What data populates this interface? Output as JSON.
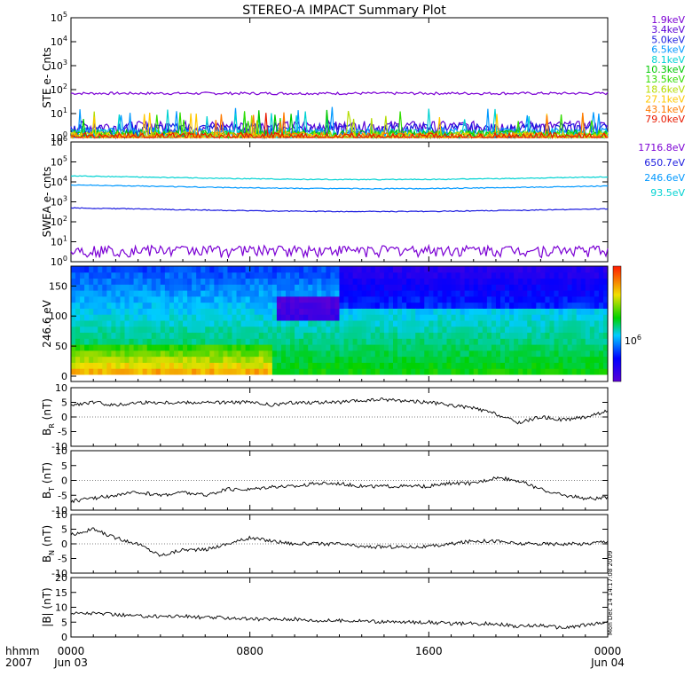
{
  "title": "STEREO-A IMPACT Summary Plot",
  "bottom_labels": {
    "hhmm": "hhmm",
    "year": "2007",
    "x_ticks": [
      "0000",
      "0800",
      "1600",
      "0000"
    ],
    "x_dates": [
      "Jun 03",
      "",
      "",
      "Jun 04"
    ]
  },
  "side_stamp": "Mon Dec 14 14:17:08 2009",
  "chart_data": [
    {
      "id": "ste",
      "type": "line",
      "ylabel": "STE e- Cnts",
      "y_scale": "log",
      "ylim": [
        1,
        100000
      ],
      "y_ticks": [
        "10^0",
        "10^1",
        "10^2",
        "10^3",
        "10^4",
        "10^5"
      ],
      "series": [
        {
          "name": "1.9keV",
          "color": "#7b00d4",
          "level": 70
        },
        {
          "name": "3.4keV",
          "color": "#5a00d6",
          "level": 3
        },
        {
          "name": "5.0keV",
          "color": "#1a1adf",
          "level": 2.4
        },
        {
          "name": "6.5keV",
          "color": "#0098ff",
          "level": 1.6
        },
        {
          "name": "8.1keV",
          "color": "#00d2d2",
          "level": 1.4
        },
        {
          "name": "10.3keV",
          "color": "#00c800",
          "level": 1.3
        },
        {
          "name": "13.5keV",
          "color": "#32dc00",
          "level": 1.2
        },
        {
          "name": "18.6keV",
          "color": "#b4dc00",
          "level": 1.1
        },
        {
          "name": "27.1keV",
          "color": "#ffc800",
          "level": 1.05
        },
        {
          "name": "43.1keV",
          "color": "#ff7a00",
          "level": 1.02
        },
        {
          "name": "79.0keV",
          "color": "#e81a00",
          "level": 1.0
        }
      ]
    },
    {
      "id": "swea",
      "type": "line",
      "ylabel": "SWEA e- cnts",
      "y_scale": "log",
      "ylim": [
        1,
        1000000
      ],
      "y_ticks": [
        "10^0",
        "10^1",
        "10^2",
        "10^3",
        "10^4",
        "10^5",
        "10^6"
      ],
      "series": [
        {
          "name": "1716.8eV",
          "color": "#7b00d4",
          "level": 4
        },
        {
          "name": "650.7eV",
          "color": "#1a1adf",
          "level": 500
        },
        {
          "name": "246.6eV",
          "color": "#0098ff",
          "level": 7000
        },
        {
          "name": "93.5eV",
          "color": "#00d2d2",
          "level": 20000
        }
      ]
    },
    {
      "id": "pad",
      "type": "heatmap",
      "ylabel": "246.6 eV",
      "ylim": [
        0,
        180
      ],
      "y_ticks": [
        "0",
        "50",
        "100",
        "150"
      ],
      "colorbar_label": "10^6"
    },
    {
      "id": "br",
      "type": "line",
      "ylabel": "B_R (nT)",
      "ylim": [
        -10,
        10
      ],
      "y_ticks": [
        "-10",
        "-5",
        "0",
        "5",
        "10"
      ],
      "x": [
        0,
        1,
        2,
        3,
        4,
        5,
        6,
        7,
        8,
        9,
        10,
        11,
        12,
        13,
        14,
        15,
        16,
        17,
        18,
        19,
        20,
        21,
        22,
        23,
        24
      ],
      "values": [
        4,
        5,
        4,
        5,
        5,
        5,
        5,
        5,
        5,
        4,
        5,
        5,
        5,
        5.5,
        6,
        5.5,
        5,
        4,
        3,
        1,
        -2,
        0,
        -1,
        0,
        2
      ]
    },
    {
      "id": "bt",
      "type": "line",
      "ylabel": "B_T (nT)",
      "ylim": [
        -10,
        10
      ],
      "y_ticks": [
        "-10",
        "-5",
        "0",
        "5",
        "10"
      ],
      "x": [
        0,
        1,
        2,
        3,
        4,
        5,
        6,
        7,
        8,
        9,
        10,
        11,
        12,
        13,
        14,
        15,
        16,
        17,
        18,
        19,
        20,
        21,
        22,
        23,
        24
      ],
      "values": [
        -7,
        -6,
        -5,
        -4,
        -5,
        -4,
        -5,
        -3,
        -3,
        -2,
        -2,
        -1,
        -1,
        -2,
        -2,
        -2,
        -2,
        -1,
        -1,
        1,
        0,
        -3,
        -5,
        -6,
        -6
      ]
    },
    {
      "id": "bn",
      "type": "line",
      "ylabel": "B_N (nT)",
      "ylim": [
        -10,
        10
      ],
      "y_ticks": [
        "-10",
        "-5",
        "0",
        "5",
        "10"
      ],
      "x": [
        0,
        1,
        2,
        3,
        4,
        5,
        6,
        7,
        8,
        9,
        10,
        11,
        12,
        13,
        14,
        15,
        16,
        17,
        18,
        19,
        20,
        21,
        22,
        23,
        24
      ],
      "values": [
        3,
        5,
        2,
        0,
        -4,
        -2,
        -2,
        0,
        2,
        1,
        0,
        0,
        0,
        -1,
        -1,
        -1,
        -1,
        0,
        1,
        1,
        0,
        0,
        0,
        0,
        1
      ]
    },
    {
      "id": "bmag",
      "type": "line",
      "ylabel": "|B| (nT)",
      "ylim": [
        0,
        20
      ],
      "y_ticks": [
        "0",
        "5",
        "10",
        "15",
        "20"
      ],
      "x": [
        0,
        1,
        2,
        3,
        4,
        5,
        6,
        7,
        8,
        9,
        10,
        11,
        12,
        13,
        14,
        15,
        16,
        17,
        18,
        19,
        20,
        21,
        22,
        23,
        24
      ],
      "values": [
        8,
        8,
        7.5,
        7,
        7,
        7,
        6.5,
        6.5,
        6,
        6,
        6,
        5.5,
        5.5,
        5.5,
        5,
        5,
        5,
        4.5,
        4.5,
        4.5,
        3.5,
        4,
        3,
        4,
        5
      ]
    }
  ]
}
